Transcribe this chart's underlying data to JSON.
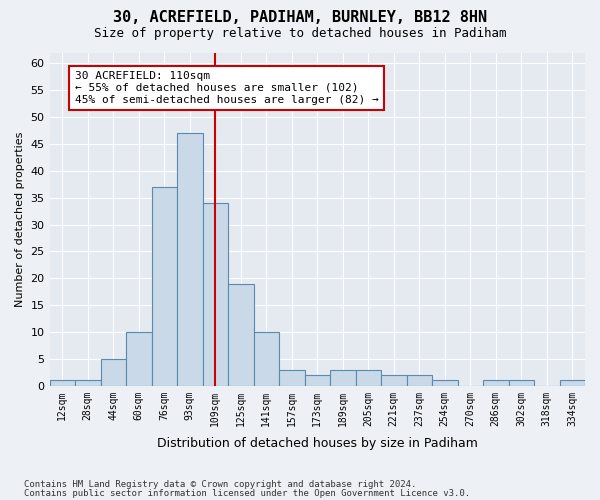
{
  "title": "30, ACREFIELD, PADIHAM, BURNLEY, BB12 8HN",
  "subtitle": "Size of property relative to detached houses in Padiham",
  "xlabel": "Distribution of detached houses by size in Padiham",
  "ylabel": "Number of detached properties",
  "bar_values": [
    1,
    1,
    5,
    10,
    37,
    47,
    34,
    19,
    10,
    3,
    2,
    3,
    3,
    2,
    2,
    1,
    0,
    1,
    1,
    0,
    1
  ],
  "bar_labels": [
    "12sqm",
    "28sqm",
    "44sqm",
    "60sqm",
    "76sqm",
    "93sqm",
    "109sqm",
    "125sqm",
    "141sqm",
    "157sqm",
    "173sqm",
    "189sqm",
    "205sqm",
    "221sqm",
    "237sqm",
    "254sqm",
    "270sqm",
    "286sqm",
    "302sqm",
    "318sqm",
    "334sqm"
  ],
  "bar_color": "#c9d9e8",
  "bar_edgecolor": "#5a8ab0",
  "highlight_color": "#cc0000",
  "vline_x": 6.0,
  "annotation_text": "30 ACREFIELD: 110sqm\n← 55% of detached houses are smaller (102)\n45% of semi-detached houses are larger (82) →",
  "annotation_box_color": "#cc0000",
  "ylim": [
    0,
    62
  ],
  "yticks": [
    0,
    5,
    10,
    15,
    20,
    25,
    30,
    35,
    40,
    45,
    50,
    55,
    60
  ],
  "footer_line1": "Contains HM Land Registry data © Crown copyright and database right 2024.",
  "footer_line2": "Contains public sector information licensed under the Open Government Licence v3.0.",
  "background_color": "#edf1f5",
  "plot_bg_color": "#e4eaf0"
}
